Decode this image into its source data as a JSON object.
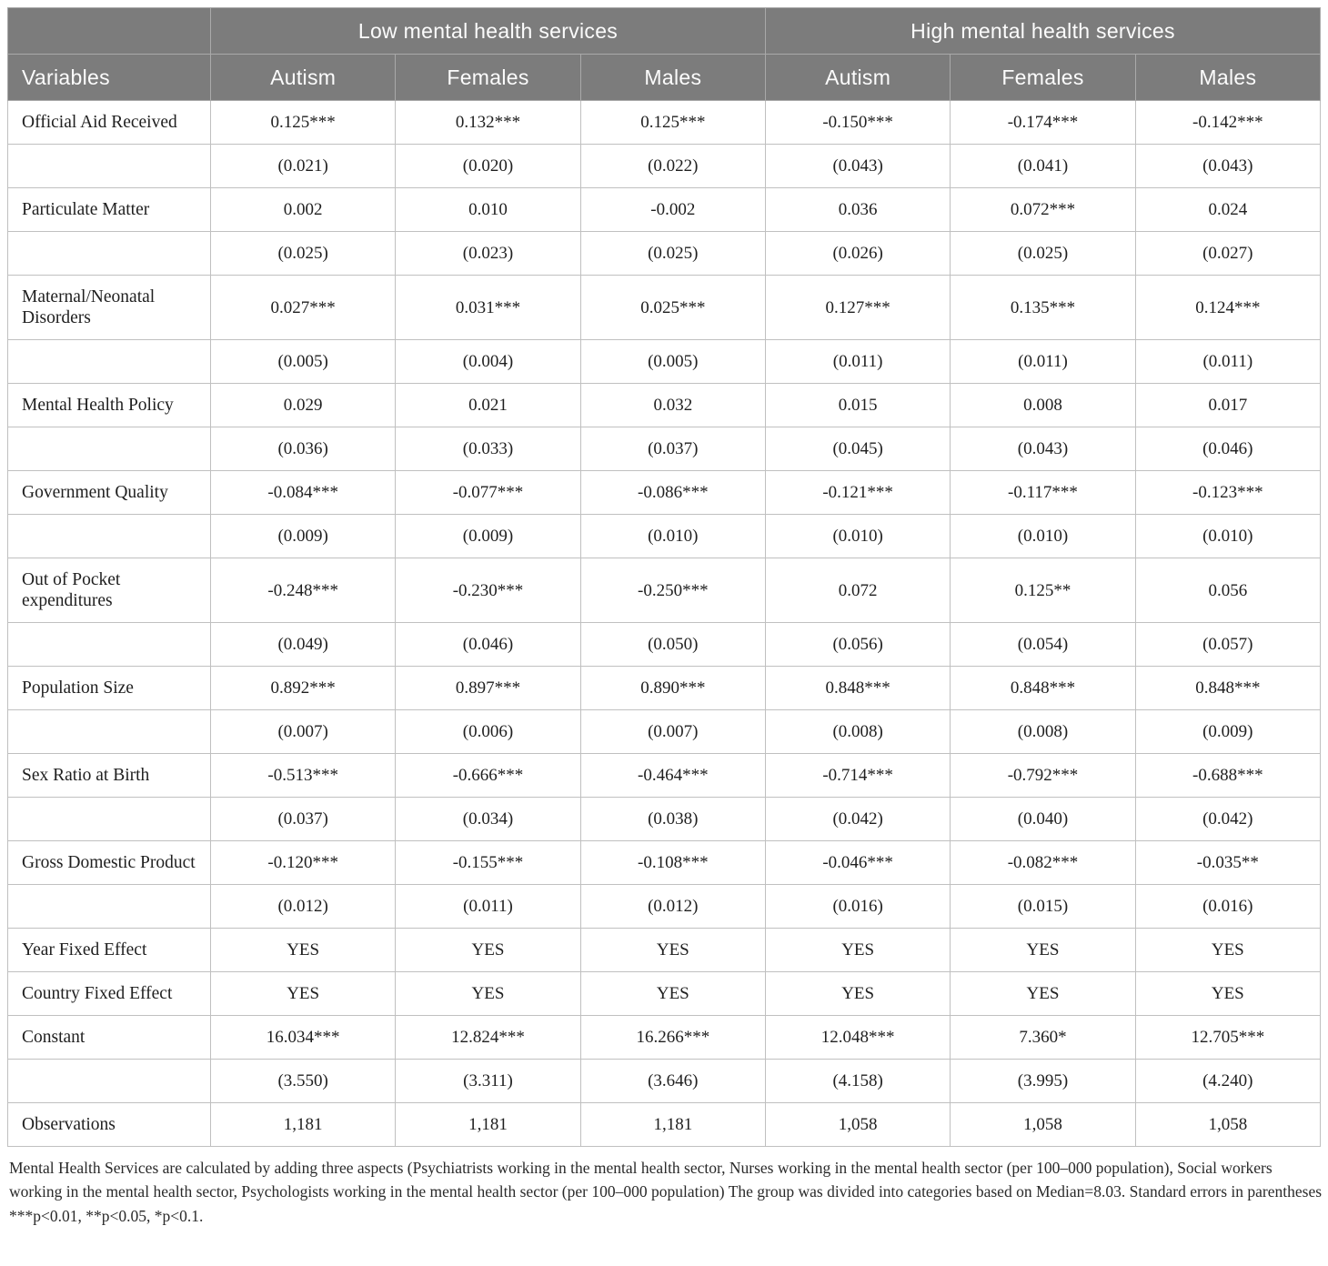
{
  "colors": {
    "header_bg": "#7c7c7c",
    "header_text": "#fcfcfc",
    "body_text": "#1f1f1f"
  },
  "table": {
    "group_headers": [
      {
        "label": "Low mental health services"
      },
      {
        "label": "High mental health services"
      }
    ],
    "variables_header": "Variables",
    "column_headers": [
      "Autism",
      "Females",
      "Males",
      "Autism",
      "Females",
      "Males"
    ],
    "rows": [
      {
        "label": "Official Aid Received",
        "values": [
          "0.125***",
          "0.132***",
          "0.125***",
          "-0.150***",
          "-0.174***",
          "-0.142***"
        ]
      },
      {
        "label": "",
        "values": [
          "(0.021)",
          "(0.020)",
          "(0.022)",
          "(0.043)",
          "(0.041)",
          "(0.043)"
        ]
      },
      {
        "label": "Particulate Matter",
        "values": [
          "0.002",
          "0.010",
          "-0.002",
          "0.036",
          "0.072***",
          "0.024"
        ]
      },
      {
        "label": "",
        "values": [
          "(0.025)",
          "(0.023)",
          "(0.025)",
          "(0.026)",
          "(0.025)",
          "(0.027)"
        ]
      },
      {
        "label": "Maternal/Neonatal Disorders",
        "values": [
          "0.027***",
          "0.031***",
          "0.025***",
          "0.127***",
          "0.135***",
          "0.124***"
        ]
      },
      {
        "label": "",
        "values": [
          "(0.005)",
          "(0.004)",
          "(0.005)",
          "(0.011)",
          "(0.011)",
          "(0.011)"
        ]
      },
      {
        "label": "Mental Health Policy",
        "values": [
          "0.029",
          "0.021",
          "0.032",
          "0.015",
          "0.008",
          "0.017"
        ]
      },
      {
        "label": "",
        "values": [
          "(0.036)",
          "(0.033)",
          "(0.037)",
          "(0.045)",
          "(0.043)",
          "(0.046)"
        ]
      },
      {
        "label": "Government Quality",
        "values": [
          "-0.084***",
          "-0.077***",
          "-0.086***",
          "-0.121***",
          "-0.117***",
          "-0.123***"
        ]
      },
      {
        "label": "",
        "values": [
          "(0.009)",
          "(0.009)",
          "(0.010)",
          "(0.010)",
          "(0.010)",
          "(0.010)"
        ]
      },
      {
        "label": "Out of Pocket expenditures",
        "values": [
          "-0.248***",
          "-0.230***",
          "-0.250***",
          "0.072",
          "0.125**",
          "0.056"
        ]
      },
      {
        "label": "",
        "values": [
          "(0.049)",
          "(0.046)",
          "(0.050)",
          "(0.056)",
          "(0.054)",
          "(0.057)"
        ]
      },
      {
        "label": "Population Size",
        "values": [
          "0.892***",
          "0.897***",
          "0.890***",
          "0.848***",
          "0.848***",
          "0.848***"
        ]
      },
      {
        "label": "",
        "values": [
          "(0.007)",
          "(0.006)",
          "(0.007)",
          "(0.008)",
          "(0.008)",
          "(0.009)"
        ]
      },
      {
        "label": "Sex Ratio at Birth",
        "values": [
          "-0.513***",
          "-0.666***",
          "-0.464***",
          "-0.714***",
          "-0.792***",
          "-0.688***"
        ]
      },
      {
        "label": "",
        "values": [
          "(0.037)",
          "(0.034)",
          "(0.038)",
          "(0.042)",
          "(0.040)",
          "(0.042)"
        ]
      },
      {
        "label": "Gross Domestic Product",
        "values": [
          "-0.120***",
          "-0.155***",
          "-0.108***",
          "-0.046***",
          "-0.082***",
          "-0.035**"
        ]
      },
      {
        "label": "",
        "values": [
          "(0.012)",
          "(0.011)",
          "(0.012)",
          "(0.016)",
          "(0.015)",
          "(0.016)"
        ]
      },
      {
        "label": "Year Fixed Effect",
        "values": [
          "YES",
          "YES",
          "YES",
          "YES",
          "YES",
          "YES"
        ]
      },
      {
        "label": "Country Fixed Effect",
        "values": [
          "YES",
          "YES",
          "YES",
          "YES",
          "YES",
          "YES"
        ]
      },
      {
        "label": "Constant",
        "values": [
          "16.034***",
          "12.824***",
          "16.266***",
          "12.048***",
          "7.360*",
          "12.705***"
        ]
      },
      {
        "label": "",
        "values": [
          "(3.550)",
          "(3.311)",
          "(3.646)",
          "(4.158)",
          "(3.995)",
          "(4.240)"
        ]
      },
      {
        "label": "Observations",
        "values": [
          "1,181",
          "1,181",
          "1,181",
          "1,058",
          "1,058",
          "1,058"
        ]
      }
    ],
    "footnote": "Mental Health Services are calculated by adding three aspects (Psychiatrists working in the mental health sector, Nurses working in the mental health sector (per 100–000 population), Social workers working in the mental health sector, Psychologists working in the mental health sector (per 100–000 population) The group was divided into categories based on Median=8.03. Standard errors in parentheses ***p<0.01, **p<0.05, *p<0.1."
  }
}
